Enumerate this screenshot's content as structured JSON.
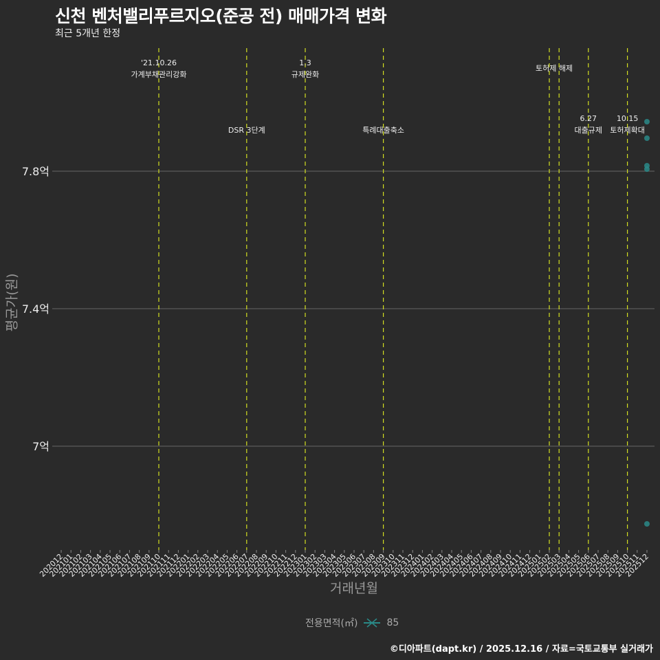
{
  "header": {
    "title": "신천 벤처밸리푸르지오(준공 전) 매매가격 변화",
    "subtitle": "최근 5개년 한정"
  },
  "axes": {
    "xlabel": "거래년월",
    "ylabel": "평균가(원)"
  },
  "legend": {
    "title": "전용면적(㎡)",
    "entries": [
      {
        "label": "85",
        "color": "#2a8a88"
      }
    ]
  },
  "footer": {
    "credit": "©디아파트(dapt.kr) / 2025.12.16 / 자료=국토교통부 실거래가"
  },
  "colors": {
    "background": "#2a2a2a",
    "grid": "#666666",
    "event_line": "#d4e020",
    "point": "#2a8a88",
    "text": "#ffffff",
    "axis_title": "#999999"
  },
  "chart_data": {
    "type": "scatter",
    "title": "신천 벤처밸리푸르지오(준공 전) 매매가격 변화",
    "subtitle": "최근 5개년 한정",
    "xlabel": "거래년월",
    "ylabel": "평균가(원)",
    "x_categories": [
      "202012",
      "202101",
      "202102",
      "202103",
      "202104",
      "202105",
      "202106",
      "202107",
      "202108",
      "202109",
      "202110",
      "202111",
      "202112",
      "202201",
      "202202",
      "202203",
      "202204",
      "202205",
      "202206",
      "202207",
      "202208",
      "202209",
      "202210",
      "202211",
      "202212",
      "202301",
      "202302",
      "202303",
      "202304",
      "202305",
      "202306",
      "202307",
      "202308",
      "202309",
      "202310",
      "202311",
      "202312",
      "202401",
      "202402",
      "202403",
      "202404",
      "202405",
      "202406",
      "202407",
      "202408",
      "202409",
      "202410",
      "202411",
      "202412",
      "202501",
      "202502",
      "202503",
      "202504",
      "202505",
      "202506",
      "202507",
      "202508",
      "202509",
      "202510",
      "202511",
      "202512"
    ],
    "y_ticks": [
      {
        "value": 7.0,
        "label": "7억"
      },
      {
        "value": 7.4,
        "label": "7.4억"
      },
      {
        "value": 7.8,
        "label": "7.8억"
      }
    ],
    "ylim": [
      6.68,
      8.29
    ],
    "grid": "horizontal major",
    "legend_position": "bottom",
    "series": [
      {
        "name": "85",
        "color": "#2a8a88",
        "points": [
          {
            "x": "202512",
            "y": 7.944
          },
          {
            "x": "202512",
            "y": 7.896
          },
          {
            "x": "202512",
            "y": 7.816
          },
          {
            "x": "202512",
            "y": 7.806
          },
          {
            "x": "202512",
            "y": 6.774
          }
        ]
      }
    ],
    "annotations": [
      {
        "x": "202110",
        "line1": "'21.10.26",
        "line2": "가계부채관리강화",
        "level": "top"
      },
      {
        "x": "202207",
        "line1": "",
        "line2": "DSR 3단계",
        "level": "mid"
      },
      {
        "x": "202301",
        "line1": "1.3",
        "line2": "규제완화",
        "level": "top"
      },
      {
        "x": "202309",
        "line1": "",
        "line2": "특례대출축소",
        "level": "mid"
      },
      {
        "x": "202502",
        "line1": "",
        "line2": "토허제 해제",
        "level": "top2",
        "offset": 0.5
      },
      {
        "x": "202503",
        "line1": "",
        "line2": "",
        "level": "none"
      },
      {
        "x": "202506",
        "line1": "6.27",
        "line2": "대출규제",
        "level": "mid"
      },
      {
        "x": "202510",
        "line1": "10.15",
        "line2": "토허제확대",
        "level": "mid"
      }
    ]
  }
}
